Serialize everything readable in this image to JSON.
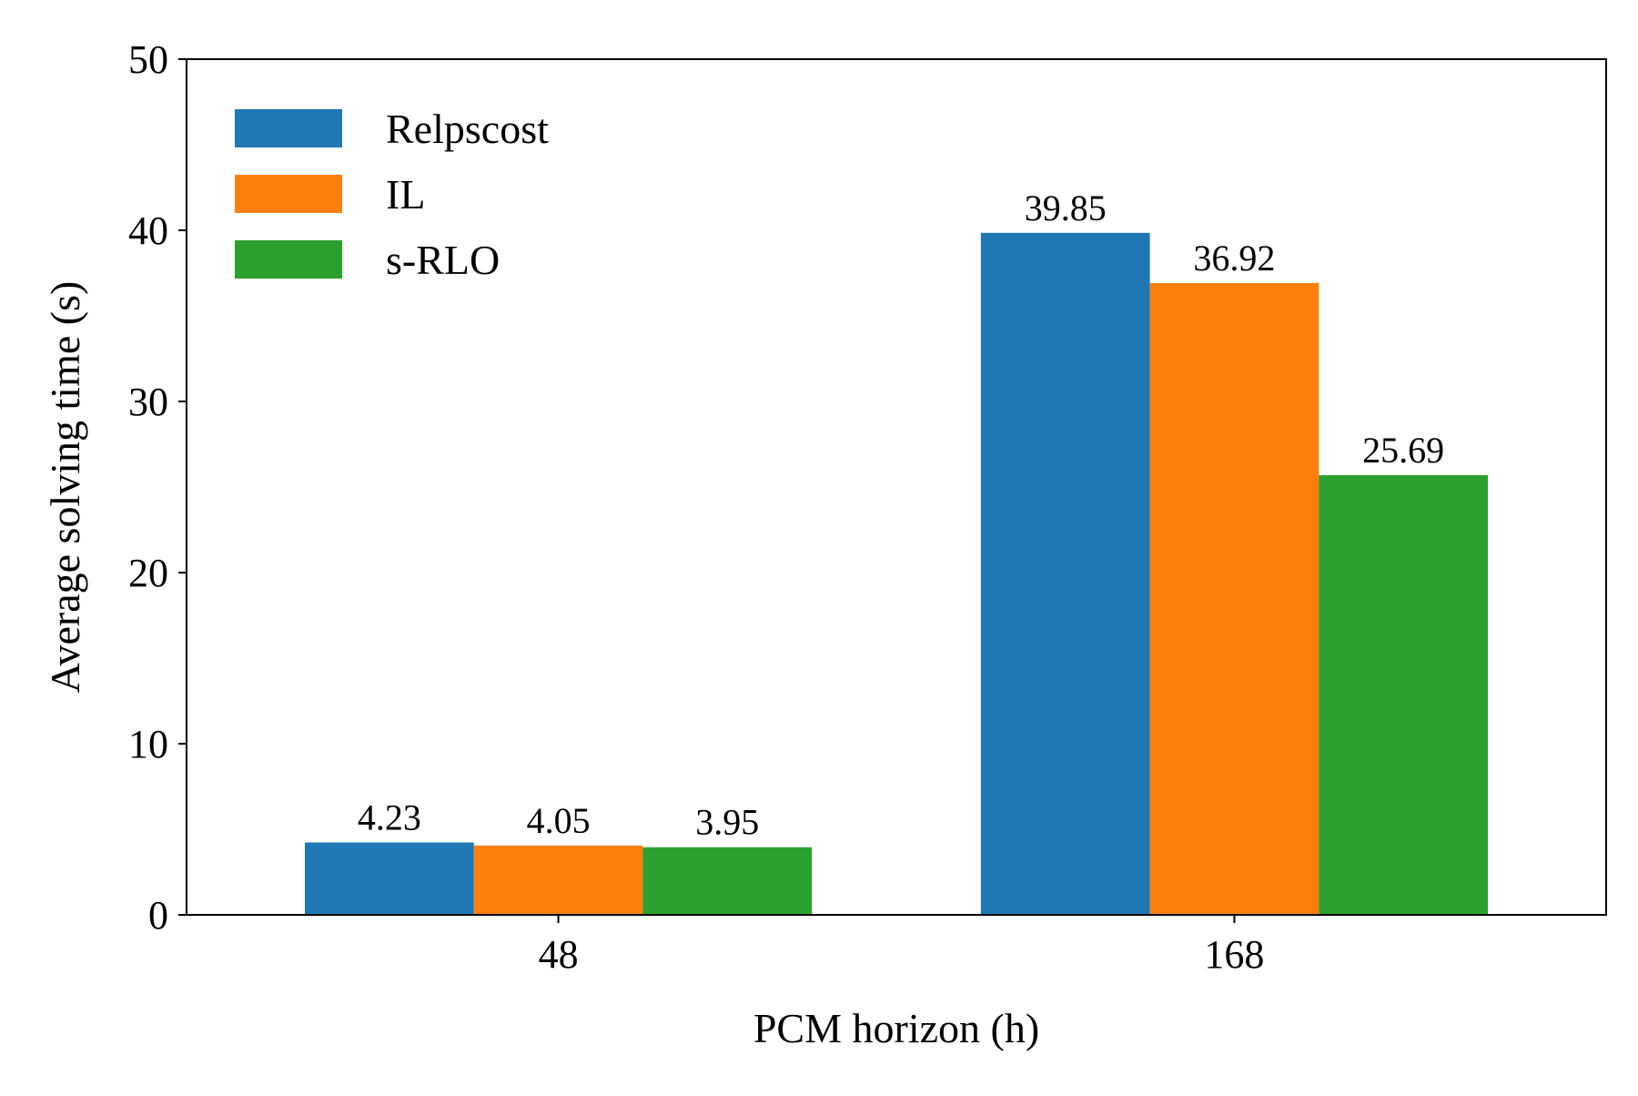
{
  "chart_data": {
    "type": "bar",
    "title": "",
    "xlabel": "PCM horizon (h)",
    "ylabel": "Average solving time (s)",
    "categories": [
      "48",
      "168"
    ],
    "ylim": [
      0,
      50
    ],
    "yticks": [
      0,
      10,
      20,
      30,
      40,
      50
    ],
    "grid": false,
    "legend_position": "top-left",
    "series": [
      {
        "name": "Relpscost",
        "color": "#1f77b4",
        "values": [
          4.23,
          39.85
        ],
        "labels": [
          "4.23",
          "39.85"
        ]
      },
      {
        "name": "IL",
        "color": "#ff7f0e",
        "values": [
          4.05,
          36.92
        ],
        "labels": [
          "4.05",
          "36.92"
        ]
      },
      {
        "name": "s-RLO",
        "color": "#2ca02c",
        "values": [
          3.95,
          25.69
        ],
        "labels": [
          "3.95",
          "25.69"
        ]
      }
    ]
  }
}
